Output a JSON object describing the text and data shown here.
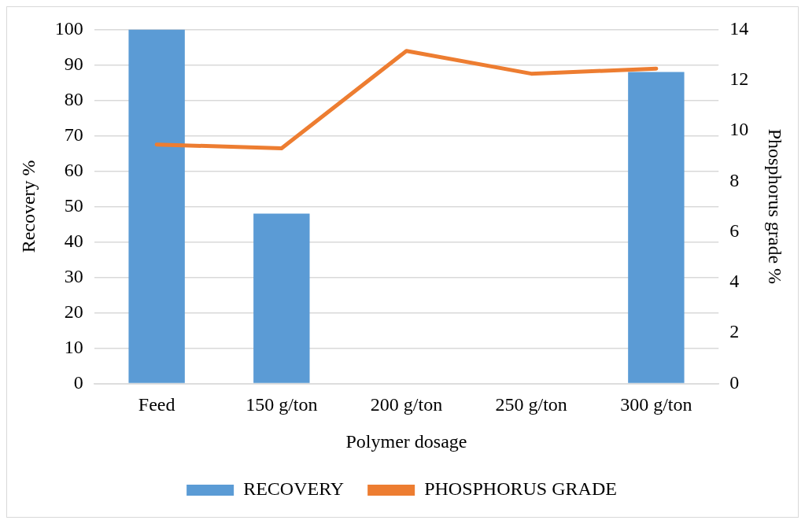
{
  "chart_data": {
    "type": "bar",
    "xlabel": "Polymer dosage",
    "ylabel": "Recovery %",
    "y2label": "Phosphorus grade %",
    "categories": [
      "Feed",
      "150 g/ton",
      "200 g/ton",
      "250 g/ton",
      "300 g/ton"
    ],
    "series": [
      {
        "name": "RECOVERY",
        "color": "#5b9bd5",
        "values": [
          100,
          48,
          null,
          null,
          88
        ]
      },
      {
        "name": "PHOSPHORUS GRADE",
        "type": "line",
        "axis": "y2",
        "color": "#ed7d31",
        "values": [
          9.45,
          9.3,
          13.15,
          12.25,
          12.45
        ]
      }
    ],
    "ylim": [
      0,
      100
    ],
    "yticks": [
      0,
      10,
      20,
      30,
      40,
      50,
      60,
      70,
      80,
      90,
      100
    ],
    "y2lim": [
      0,
      14
    ],
    "y2ticks": [
      0,
      2,
      4,
      6,
      8,
      10,
      12,
      14
    ],
    "grid": "y",
    "legend": "bottom",
    "marker": "none"
  }
}
